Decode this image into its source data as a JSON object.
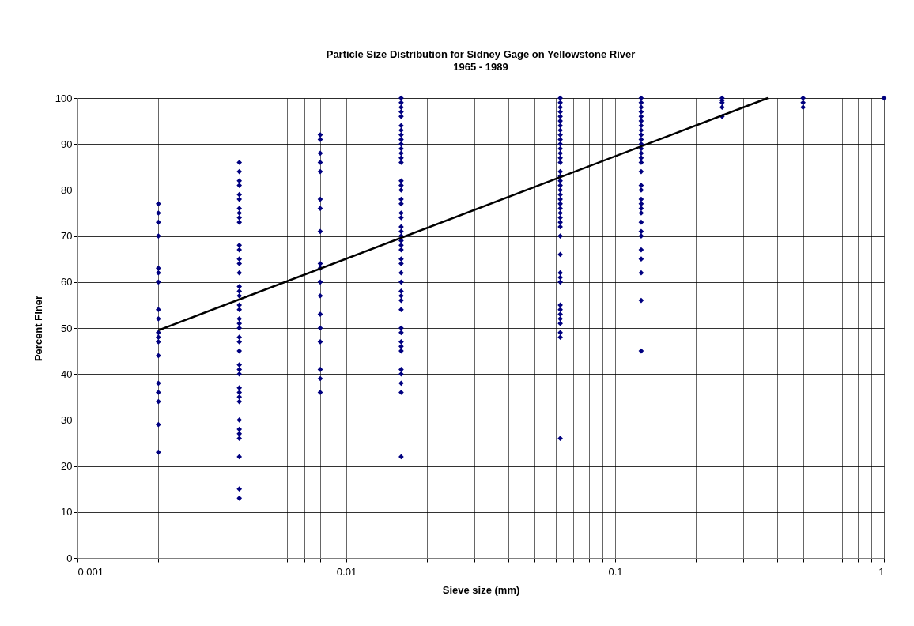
{
  "chart_data": {
    "type": "scatter",
    "title": "Particle Size Distribution for Sidney Gage on Yellowstone River",
    "subtitle": "1965 - 1989",
    "xlabel": "Sieve size (mm)",
    "ylabel": "Percent Finer",
    "log": "x",
    "grid": true,
    "marker": "diamond",
    "line_style": "solid",
    "xlim": [
      0.001,
      1
    ],
    "xticks": [
      0.001,
      {
        "value": 0.002,
        "label": null
      },
      {
        "value": 0.003,
        "label": null
      },
      {
        "value": 0.004,
        "label": null
      },
      {
        "value": 0.005,
        "label": null
      },
      {
        "value": 0.006,
        "label": null
      },
      {
        "value": 0.007,
        "label": null
      },
      {
        "value": 0.008,
        "label": null
      },
      {
        "value": 0.009,
        "label": null
      },
      0.01,
      {
        "value": 0.02,
        "label": null
      },
      {
        "value": 0.03,
        "label": null
      },
      {
        "value": 0.04,
        "label": null
      },
      {
        "value": 0.05,
        "label": null
      },
      {
        "value": 0.06,
        "label": null
      },
      {
        "value": 0.07,
        "label": null
      },
      {
        "value": 0.08,
        "label": null
      },
      {
        "value": 0.09,
        "label": null
      },
      0.1,
      {
        "value": 0.2,
        "label": null
      },
      {
        "value": 0.3,
        "label": null
      },
      {
        "value": 0.4,
        "label": null
      },
      {
        "value": 0.5,
        "label": null
      },
      {
        "value": 0.6,
        "label": null
      },
      {
        "value": 0.7,
        "label": null
      },
      {
        "value": 0.8,
        "label": null
      },
      {
        "value": 0.9,
        "label": null
      },
      1
    ],
    "ylim": [
      0,
      100
    ],
    "yticks": [
      0,
      10,
      20,
      30,
      40,
      50,
      60,
      70,
      80,
      90,
      100
    ],
    "series": [
      {
        "color": "#000080",
        "x": [
          0.002,
          0.002,
          0.002,
          0.002,
          0.002,
          0.002,
          0.002,
          0.002,
          0.002,
          0.002,
          0.002,
          0.002,
          0.002,
          0.002,
          0.002,
          0.002,
          0.002,
          0.002,
          0.004,
          0.004,
          0.004,
          0.004,
          0.004,
          0.004,
          0.004,
          0.004,
          0.004,
          0.004,
          0.004,
          0.004,
          0.004,
          0.004,
          0.004,
          0.004,
          0.004,
          0.004,
          0.004,
          0.004,
          0.004,
          0.004,
          0.004,
          0.004,
          0.004,
          0.004,
          0.004,
          0.004,
          0.004,
          0.004,
          0.004,
          0.004,
          0.004,
          0.004,
          0.004,
          0.004,
          0.004,
          0.004,
          0.004,
          0.004,
          0.008,
          0.008,
          0.008,
          0.008,
          0.008,
          0.008,
          0.008,
          0.008,
          0.008,
          0.008,
          0.008,
          0.008,
          0.008,
          0.008,
          0.008,
          0.008,
          0.008,
          0.008,
          0.016,
          0.016,
          0.016,
          0.016,
          0.016,
          0.016,
          0.016,
          0.016,
          0.016,
          0.016,
          0.016,
          0.016,
          0.016,
          0.016,
          0.016,
          0.016,
          0.016,
          0.016,
          0.016,
          0.016,
          0.016,
          0.016,
          0.016,
          0.016,
          0.016,
          0.016,
          0.016,
          0.016,
          0.016,
          0.016,
          0.016,
          0.016,
          0.016,
          0.016,
          0.016,
          0.016,
          0.016,
          0.016,
          0.016,
          0.016,
          0.016,
          0.016,
          0.016,
          0.016,
          0.016,
          0.0625,
          0.0625,
          0.0625,
          0.0625,
          0.0625,
          0.0625,
          0.0625,
          0.0625,
          0.0625,
          0.0625,
          0.0625,
          0.0625,
          0.0625,
          0.0625,
          0.0625,
          0.0625,
          0.0625,
          0.0625,
          0.0625,
          0.0625,
          0.0625,
          0.0625,
          0.0625,
          0.0625,
          0.0625,
          0.0625,
          0.0625,
          0.0625,
          0.0625,
          0.0625,
          0.0625,
          0.0625,
          0.0625,
          0.0625,
          0.0625,
          0.0625,
          0.0625,
          0.0625,
          0.0625,
          0.0625,
          0.0625,
          0.125,
          0.125,
          0.125,
          0.125,
          0.125,
          0.125,
          0.125,
          0.125,
          0.125,
          0.125,
          0.125,
          0.125,
          0.125,
          0.125,
          0.125,
          0.125,
          0.125,
          0.125,
          0.125,
          0.125,
          0.125,
          0.125,
          0.125,
          0.125,
          0.125,
          0.125,
          0.125,
          0.125,
          0.125,
          0.125,
          0.25,
          0.25,
          0.25,
          0.25,
          0.25,
          0.5,
          0.5,
          0.5,
          1
        ],
        "values": [
          77,
          75,
          73,
          70,
          63,
          62,
          60,
          54,
          52,
          49,
          48,
          47,
          44,
          38,
          36,
          34,
          29,
          23,
          86,
          84,
          82,
          81,
          79,
          78,
          76,
          75,
          74,
          73,
          68,
          67,
          65,
          64,
          62,
          59,
          58,
          57,
          55,
          54,
          52,
          51,
          50,
          48,
          47,
          45,
          42,
          41,
          40,
          37,
          36,
          35,
          34,
          30,
          28,
          27,
          26,
          22,
          15,
          13,
          92,
          91,
          88,
          86,
          84,
          78,
          76,
          71,
          64,
          63,
          60,
          57,
          53,
          50,
          47,
          41,
          39,
          36,
          100,
          99,
          98,
          97,
          96,
          94,
          93,
          92,
          91,
          90,
          89,
          88,
          87,
          86,
          82,
          81,
          80,
          78,
          77,
          75,
          74,
          72,
          71,
          70,
          69,
          68,
          67,
          65,
          64,
          62,
          60,
          58,
          57,
          56,
          54,
          50,
          49,
          47,
          46,
          45,
          41,
          40,
          38,
          36,
          22,
          100,
          99,
          98,
          97,
          96,
          95,
          94,
          93,
          92,
          91,
          90,
          89,
          88,
          87,
          86,
          84,
          83,
          82,
          81,
          80,
          79,
          78,
          77,
          76,
          75,
          74,
          73,
          72,
          70,
          66,
          62,
          61,
          60,
          55,
          54,
          53,
          52,
          51,
          49,
          48,
          26,
          100,
          99,
          98,
          97,
          96,
          95,
          94,
          93,
          92,
          91,
          90,
          89,
          88,
          87,
          86,
          84,
          81,
          80,
          78,
          77,
          76,
          75,
          73,
          71,
          70,
          67,
          65,
          62,
          56,
          45,
          100,
          99.5,
          99,
          98,
          96,
          100,
          99,
          98,
          100
        ]
      },
      {
        "type": "line",
        "marker": "none",
        "color": "#000000",
        "x": [
          0.002,
          0.37
        ],
        "values": [
          49.5,
          100
        ]
      }
    ]
  }
}
